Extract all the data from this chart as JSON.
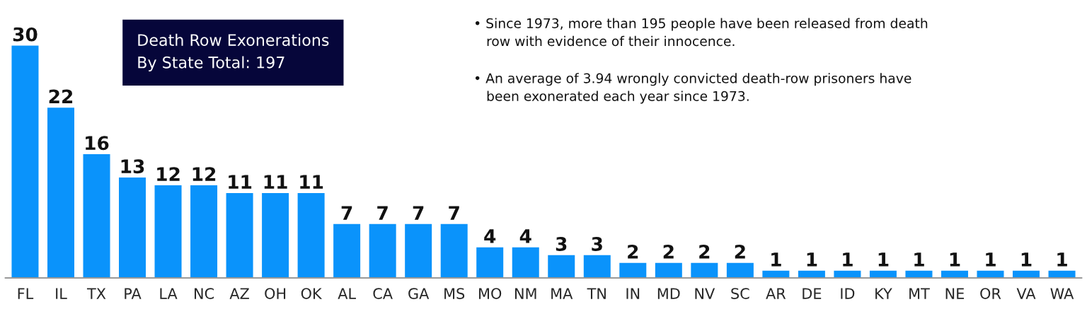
{
  "chart_data": {
    "type": "bar",
    "title": "Death Row Exonerations\nBy State Total: 197",
    "categories": [
      "FL",
      "IL",
      "TX",
      "PA",
      "LA",
      "NC",
      "AZ",
      "OH",
      "OK",
      "AL",
      "CA",
      "GA",
      "MS",
      "MO",
      "NM",
      "MA",
      "TN",
      "IN",
      "MD",
      "NV",
      "SC",
      "AR",
      "DE",
      "ID",
      "KY",
      "MT",
      "NE",
      "OR",
      "VA",
      "WA"
    ],
    "values": [
      30,
      22,
      16,
      13,
      12,
      12,
      11,
      11,
      11,
      7,
      7,
      7,
      7,
      4,
      4,
      3,
      3,
      2,
      2,
      2,
      2,
      1,
      1,
      1,
      1,
      1,
      1,
      1,
      1,
      1
    ],
    "color": "#0a93fb",
    "data_labels": true,
    "tick_labels": "x",
    "annotations": [
      "• Since 1973, more than 195 people have been released from death\n   row with evidence of their innocence.",
      "• An average of 3.94 wrongly convicted death-row prisoners have\n   been exonerated each year since 1973."
    ]
  }
}
